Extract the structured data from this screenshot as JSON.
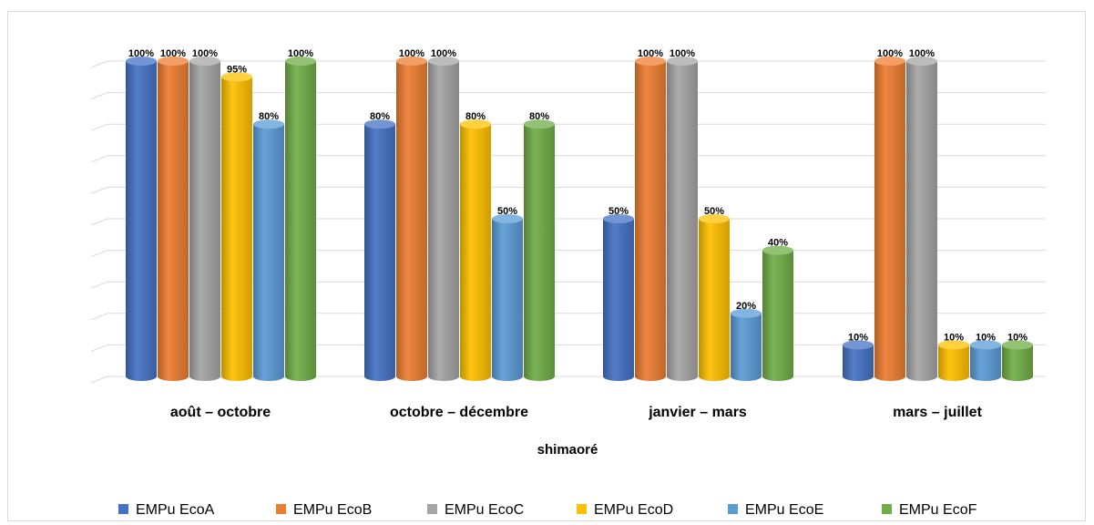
{
  "chart_data": {
    "type": "bar",
    "style": "3d-cylinder",
    "xlabel": "shimaoré",
    "categories": [
      "août – octobre",
      "octobre – décembre",
      "janvier – mars",
      "mars – juillet"
    ],
    "ylim": [
      0,
      100
    ],
    "y_unit": "%",
    "grid": true,
    "legend_position": "bottom",
    "series": [
      {
        "name": "EMPu EcoA",
        "color": "#4472c4",
        "values": [
          100,
          80,
          50,
          10
        ]
      },
      {
        "name": "EMPu EcoB",
        "color": "#ed7d31",
        "values": [
          100,
          100,
          100,
          100
        ]
      },
      {
        "name": "EMPu EcoC",
        "color": "#a5a5a5",
        "values": [
          100,
          100,
          100,
          100
        ]
      },
      {
        "name": "EMPu EcoD",
        "color": "#ffc000",
        "values": [
          95,
          80,
          50,
          10
        ]
      },
      {
        "name": "EMPu EcoE",
        "color": "#5b9bd5",
        "values": [
          80,
          50,
          20,
          10
        ]
      },
      {
        "name": "EMPu EcoF",
        "color": "#70ad47",
        "values": [
          100,
          80,
          40,
          10
        ]
      }
    ]
  }
}
